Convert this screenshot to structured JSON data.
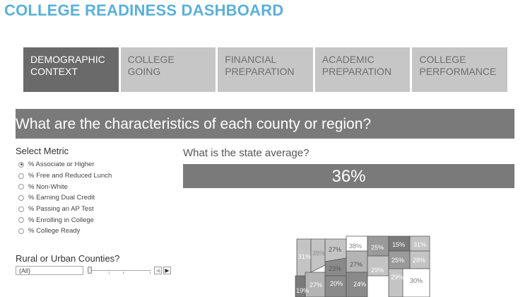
{
  "header": {
    "title": "COLLEGE READINESS DASHBOARD"
  },
  "tabs": [
    {
      "line1": "DEMOGRAPHIC",
      "line2": "CONTEXT",
      "active": true
    },
    {
      "line1": "COLLEGE",
      "line2": "GOING",
      "active": false
    },
    {
      "line1": "FINANCIAL",
      "line2": "PREPARATION",
      "active": false
    },
    {
      "line1": "ACADEMIC",
      "line2": "PREPARATION",
      "active": false
    },
    {
      "line1": "COLLEGE",
      "line2": "PERFORMANCE",
      "active": false
    }
  ],
  "question": "What are the characteristics of each county or region?",
  "metric": {
    "label": "Select Metric",
    "options": [
      {
        "text": "% Associate or Higher",
        "selected": true
      },
      {
        "text": "% Free and Reduced Lunch",
        "selected": false
      },
      {
        "text": "% Non-White",
        "selected": false
      },
      {
        "text": "% Earning Dual Credit",
        "selected": false
      },
      {
        "text": "% Passing an AP Test",
        "selected": false
      },
      {
        "text": "% Enrolling in College",
        "selected": false
      },
      {
        "text": "% College Ready",
        "selected": false
      }
    ]
  },
  "filter": {
    "label": "Rural or Urban Counties?",
    "value": "(All)",
    "prev_icon": "chevron-left-icon",
    "next_icon": "chevron-right-icon"
  },
  "average": {
    "question": "What is the state average?",
    "value": "36%"
  },
  "map": {
    "county_labels": [
      "31%",
      "39%",
      "27%",
      "38%",
      "25%",
      "15%",
      "31%",
      "23%",
      "27%",
      "29%",
      "25%",
      "28%",
      "19%",
      "27%",
      "20%",
      "24%",
      "29%",
      "30%"
    ]
  },
  "colors": {
    "title": "#5ab0d9",
    "tab_active": "#6a6a6a",
    "tab_inactive": "#c6c6c6",
    "banner": "#7a7a7a"
  }
}
